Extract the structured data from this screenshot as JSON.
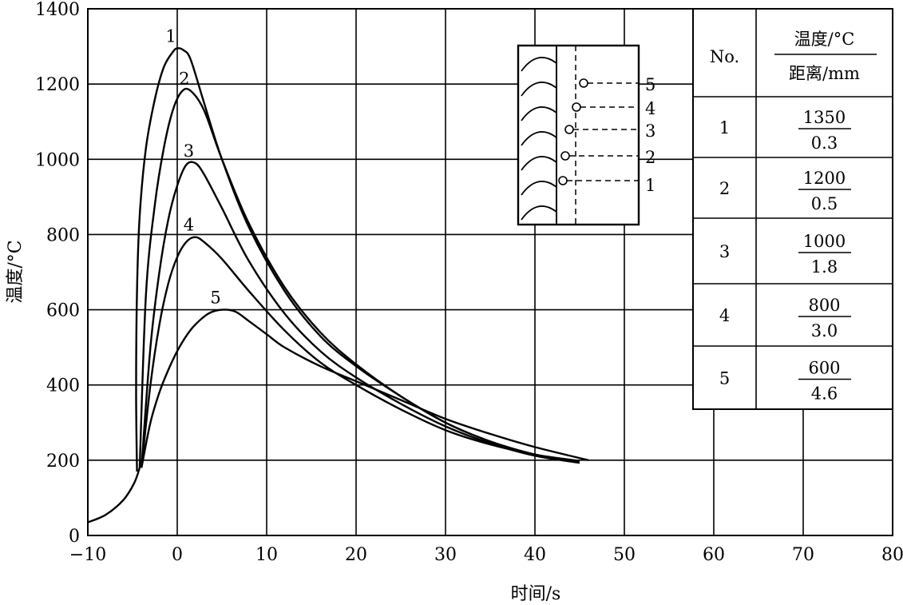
{
  "chart_data": {
    "type": "line",
    "title": "",
    "xlabel": "时间/s",
    "ylabel": "温度/°C",
    "xlim": [
      -10,
      80
    ],
    "ylim": [
      0,
      1400
    ],
    "x_ticks": [
      -10,
      0,
      10,
      20,
      30,
      40,
      50,
      60,
      70,
      80
    ],
    "y_ticks": [
      0,
      200,
      400,
      600,
      800,
      1000,
      1200,
      1400
    ],
    "x_tick_labels": [
      "−10",
      "0",
      "10",
      "20",
      "30",
      "40",
      "50",
      "60",
      "70",
      "80"
    ],
    "y_tick_labels": [
      "0",
      "200",
      "400",
      "600",
      "800",
      "1000",
      "1200",
      "1400"
    ],
    "grid": true,
    "series": [
      {
        "label": "1",
        "x": [
          -4.5,
          -4.6,
          -4.5,
          -4.2,
          -3.5,
          -2.5,
          -1.5,
          -0.5,
          0,
          0.7,
          1.5,
          3,
          5,
          8,
          12,
          16,
          20,
          25,
          30,
          35,
          40,
          44.5
        ],
        "y": [
          170,
          380,
          650,
          850,
          1030,
          1160,
          1245,
          1285,
          1295,
          1290,
          1265,
          1150,
          1000,
          820,
          650,
          530,
          450,
          370,
          300,
          250,
          215,
          195
        ]
      },
      {
        "label": "2",
        "x": [
          -4.2,
          -3.5,
          -2.5,
          -1.5,
          -0.5,
          0.5,
          1.5,
          3,
          5,
          8,
          12,
          16,
          20,
          25,
          30,
          35,
          40,
          44.5
        ],
        "y": [
          180,
          640,
          880,
          1030,
          1130,
          1180,
          1182,
          1130,
          1000,
          830,
          660,
          540,
          455,
          370,
          300,
          250,
          215,
          195
        ]
      },
      {
        "label": "3",
        "x": [
          -4.0,
          -3.0,
          -2.0,
          -1.0,
          0,
          1,
          2,
          3,
          5,
          8,
          12,
          16,
          20,
          25,
          30,
          35,
          40,
          45
        ],
        "y": [
          180,
          500,
          700,
          840,
          930,
          985,
          990,
          960,
          870,
          730,
          590,
          490,
          420,
          350,
          290,
          245,
          212,
          193
        ]
      },
      {
        "label": "4",
        "x": [
          -4.0,
          -3.0,
          -2.0,
          -1.0,
          0,
          1,
          2,
          3,
          5,
          8,
          12,
          16,
          20,
          25,
          30,
          35,
          40,
          45
        ],
        "y": [
          180,
          400,
          560,
          670,
          740,
          780,
          793,
          780,
          735,
          650,
          545,
          460,
          400,
          335,
          280,
          242,
          215,
          198
        ]
      },
      {
        "label": "5",
        "x": [
          -4.0,
          -3.0,
          -2.0,
          -1.0,
          0,
          1,
          2,
          3.5,
          5,
          6.5,
          8,
          10,
          12,
          16,
          20,
          25,
          30,
          35,
          40,
          46
        ],
        "y": [
          180,
          300,
          380,
          440,
          490,
          530,
          560,
          590,
          600,
          595,
          570,
          535,
          500,
          450,
          410,
          360,
          310,
          270,
          235,
          200
        ]
      }
    ],
    "table": {
      "col_header_1": "No.",
      "col_header_2_top": "温度/°C",
      "col_header_2_bottom": "距离/mm",
      "rows": [
        {
          "no": "1",
          "temp": "1350",
          "dist": "0.3"
        },
        {
          "no": "2",
          "temp": "1200",
          "dist": "0.5"
        },
        {
          "no": "3",
          "temp": "1000",
          "dist": "1.8"
        },
        {
          "no": "4",
          "temp": "800",
          "dist": "3.0"
        },
        {
          "no": "5",
          "temp": "600",
          "dist": "4.6"
        }
      ]
    },
    "inset_labels": [
      "5",
      "4",
      "3",
      "2",
      "1"
    ]
  }
}
